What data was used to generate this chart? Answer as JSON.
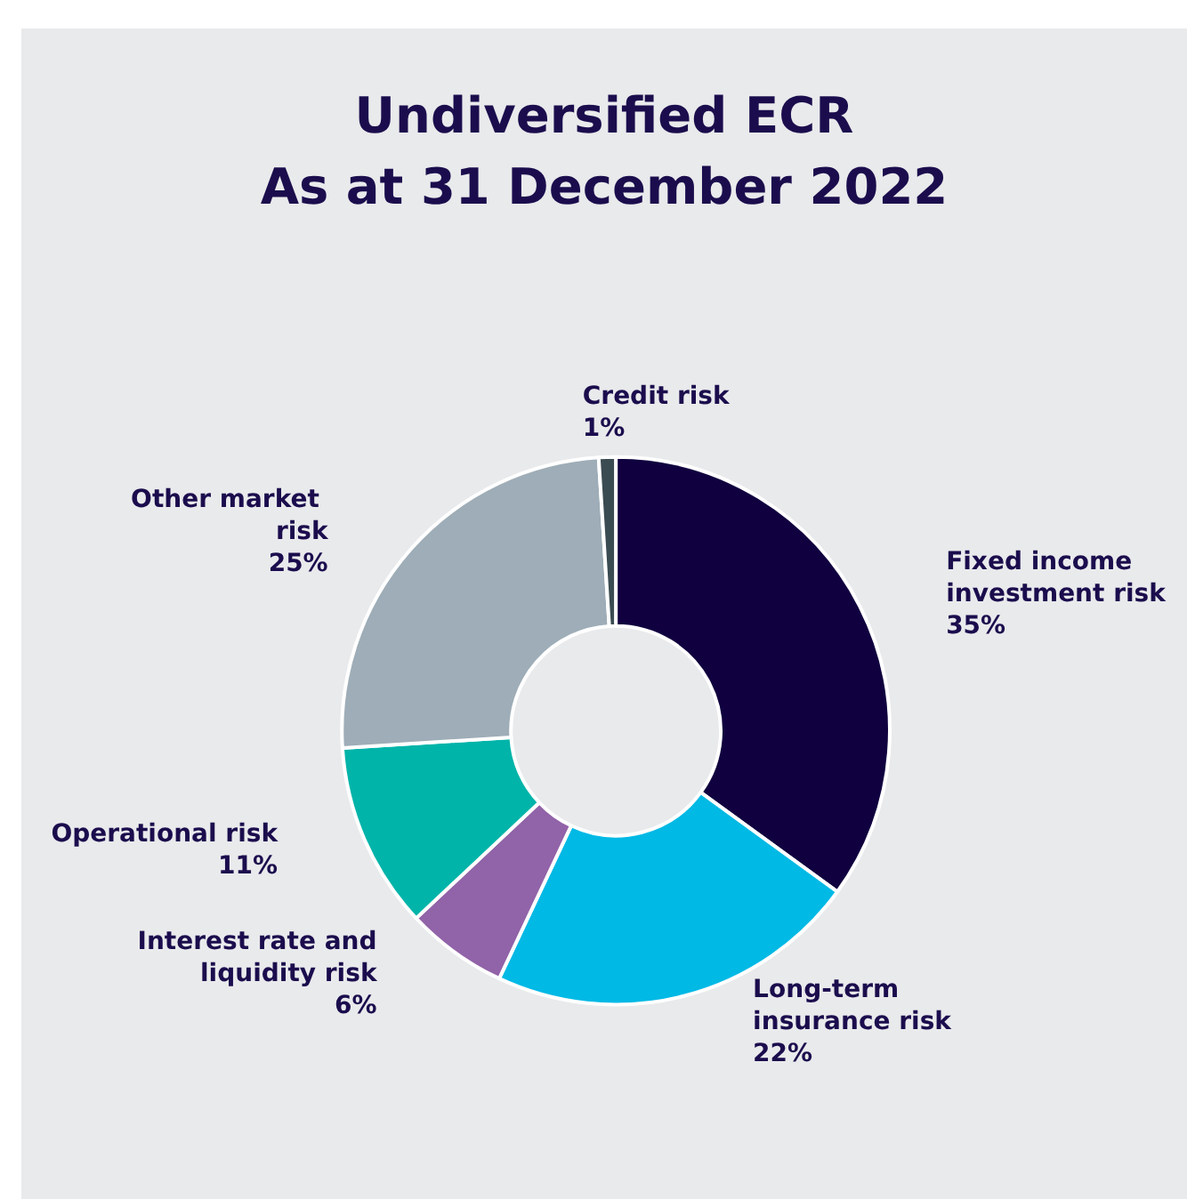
{
  "chart_data": {
    "type": "donut",
    "title": "Undiversified ECR\nAs at 31 December 2022",
    "categories": [
      "Fixed income investment risk",
      "Long-term insurance risk",
      "Interest rate and liquidity risk",
      "Operational risk",
      "Other market risk",
      "Credit risk"
    ],
    "values": [
      35,
      22,
      6,
      11,
      25,
      1
    ],
    "value_labels": [
      "35%",
      "22%",
      "6%",
      "11%",
      "25%",
      "1%"
    ],
    "colors": [
      "#10003f",
      "#00b9e5",
      "#9163a8",
      "#00b4a9",
      "#9eadb7",
      "#3b4b52"
    ],
    "legend": false
  }
}
